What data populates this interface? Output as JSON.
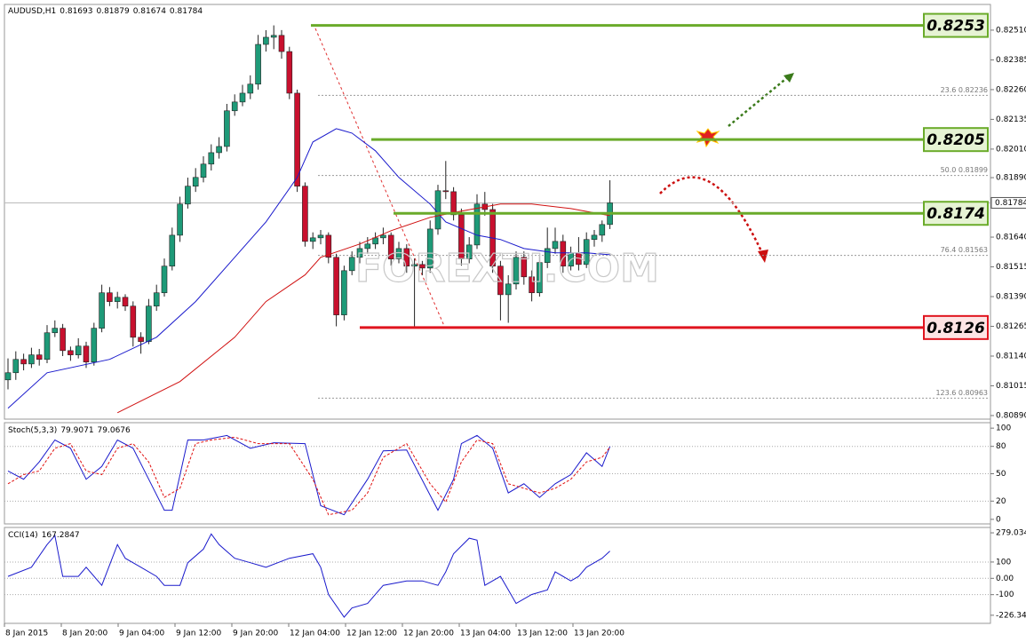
{
  "chart_data": [
    {
      "type": "candlestick",
      "title": "AUDUSD,H1",
      "watermark": "FOREXTI.COM",
      "up_color": "#1e9a78",
      "down_color": "#c8102e",
      "categories": [
        "8 Jan 2015",
        "8 Jan 20:00",
        "9 Jan 04:00",
        "9 Jan 12:00",
        "9 Jan 20:00",
        "12 Jan 04:00",
        "12 Jan 12:00",
        "12 Jan 20:00",
        "13 Jan 04:00",
        "13 Jan 12:00",
        "13 Jan 20:00"
      ],
      "ylim": [
        0.80875,
        0.82618
      ],
      "yticks": [
        {
          "value": 0.8251,
          "label": "0.82510"
        },
        0.82385,
        {
          "value": 0.8226,
          "label": "0.82260"
        },
        0.82135,
        {
          "value": 0.8201,
          "label": "0.82010"
        },
        {
          "value": 0.8189,
          "label": "0.81890"
        },
        {
          "value": 0.8164,
          "label": "0.81640"
        },
        0.81515,
        {
          "value": 0.8139,
          "label": "0.81390"
        },
        0.81265,
        {
          "value": 0.8114,
          "label": "0.81140"
        },
        0.81015,
        {
          "value": 0.8089,
          "label": "0.80890"
        }
      ],
      "candles": [
        [
          0.8104,
          0.8113,
          0.81,
          0.8107
        ],
        [
          0.8107,
          0.8116,
          0.8104,
          0.81126
        ],
        [
          0.81126,
          0.8115,
          0.8108,
          0.81107
        ],
        [
          0.81107,
          0.81175,
          0.8109,
          0.81145
        ],
        [
          0.81145,
          0.8117,
          0.811,
          0.81126
        ],
        [
          0.81126,
          0.8127,
          0.8111,
          0.81238
        ],
        [
          0.81238,
          0.8129,
          0.8122,
          0.81257
        ],
        [
          0.81257,
          0.81275,
          0.8114,
          0.81163
        ],
        [
          0.81163,
          0.8118,
          0.8112,
          0.81145
        ],
        [
          0.81145,
          0.81215,
          0.8113,
          0.81182
        ],
        [
          0.81182,
          0.812,
          0.8109,
          0.81115
        ],
        [
          0.81115,
          0.8128,
          0.811,
          0.81257
        ],
        [
          0.81257,
          0.8144,
          0.8124,
          0.81406
        ],
        [
          0.81406,
          0.8143,
          0.8135,
          0.81369
        ],
        [
          0.81369,
          0.8141,
          0.8134,
          0.81387
        ],
        [
          0.81387,
          0.814,
          0.8133,
          0.8135
        ],
        [
          0.8135,
          0.8137,
          0.8118,
          0.81219
        ],
        [
          0.81219,
          0.8124,
          0.8115,
          0.81201
        ],
        [
          0.81201,
          0.8138,
          0.8119,
          0.8135
        ],
        [
          0.8135,
          0.8144,
          0.8133,
          0.81406
        ],
        [
          0.81406,
          0.8155,
          0.8139,
          0.81518
        ],
        [
          0.81518,
          0.8168,
          0.815,
          0.81648
        ],
        [
          0.81648,
          0.8181,
          0.8162,
          0.81779
        ],
        [
          0.81779,
          0.8189,
          0.8176,
          0.81854
        ],
        [
          0.81854,
          0.8193,
          0.8183,
          0.81891
        ],
        [
          0.81891,
          0.8198,
          0.8187,
          0.81947
        ],
        [
          0.81947,
          0.8203,
          0.8192,
          0.81995
        ],
        [
          0.81995,
          0.8206,
          0.8197,
          0.82021
        ],
        [
          0.82021,
          0.822,
          0.82,
          0.82171
        ],
        [
          0.82171,
          0.8224,
          0.8215,
          0.82208
        ],
        [
          0.82208,
          0.8228,
          0.8219,
          0.82245
        ],
        [
          0.82245,
          0.8232,
          0.8222,
          0.82283
        ],
        [
          0.82283,
          0.8249,
          0.8226,
          0.8245
        ],
        [
          0.8245,
          0.8251,
          0.8242,
          0.8248
        ],
        [
          0.8248,
          0.8253,
          0.8243,
          0.82488
        ],
        [
          0.82488,
          0.8251,
          0.8239,
          0.8242
        ],
        [
          0.8242,
          0.8244,
          0.8222,
          0.82245
        ],
        [
          0.82245,
          0.8226,
          0.8183,
          0.81854
        ],
        [
          0.81854,
          0.8187,
          0.816,
          0.81622
        ],
        [
          0.81622,
          0.8166,
          0.8159,
          0.81637
        ],
        [
          0.81637,
          0.8167,
          0.8161,
          0.81648
        ],
        [
          0.81648,
          0.8166,
          0.8153,
          0.81555
        ],
        [
          0.81555,
          0.8157,
          0.81265,
          0.81313
        ],
        [
          0.81313,
          0.8152,
          0.8129,
          0.81499
        ],
        [
          0.81499,
          0.8158,
          0.8148,
          0.81555
        ],
        [
          0.81555,
          0.8162,
          0.8153,
          0.81592
        ],
        [
          0.81592,
          0.8164,
          0.8157,
          0.81611
        ],
        [
          0.81611,
          0.8166,
          0.8159,
          0.81637
        ],
        [
          0.81637,
          0.8168,
          0.8161,
          0.81648
        ],
        [
          0.81648,
          0.8166,
          0.8152,
          0.81548
        ],
        [
          0.81548,
          0.8162,
          0.8153,
          0.81592
        ],
        [
          0.81592,
          0.8161,
          0.8149,
          0.81518
        ],
        [
          0.81518,
          0.8155,
          0.81265,
          0.81525
        ],
        [
          0.81525,
          0.8154,
          0.8148,
          0.8151
        ],
        [
          0.8151,
          0.8171,
          0.8149,
          0.81674
        ],
        [
          0.81674,
          0.8186,
          0.8165,
          0.81835
        ],
        [
          0.81835,
          0.8196,
          0.818,
          0.81831
        ],
        [
          0.81831,
          0.8185,
          0.8171,
          0.81734
        ],
        [
          0.81734,
          0.8176,
          0.8152,
          0.81548
        ],
        [
          0.81548,
          0.8164,
          0.8153,
          0.81607
        ],
        [
          0.81607,
          0.8182,
          0.8159,
          0.81779
        ],
        [
          0.81779,
          0.8183,
          0.8173,
          0.81756
        ],
        [
          0.81756,
          0.8178,
          0.8149,
          0.81518
        ],
        [
          0.81518,
          0.8154,
          0.8129,
          0.81398
        ],
        [
          0.81398,
          0.8148,
          0.8128,
          0.81443
        ],
        [
          0.81443,
          0.8158,
          0.8142,
          0.81555
        ],
        [
          0.81555,
          0.8158,
          0.8144,
          0.81473
        ],
        [
          0.81473,
          0.815,
          0.8137,
          0.81406
        ],
        [
          0.81406,
          0.8156,
          0.8139,
          0.81533
        ],
        [
          0.81533,
          0.8168,
          0.8151,
          0.81592
        ],
        [
          0.81592,
          0.8168,
          0.8157,
          0.81622
        ],
        [
          0.81622,
          0.8165,
          0.8149,
          0.81518
        ],
        [
          0.81518,
          0.816,
          0.815,
          0.81574
        ],
        [
          0.81574,
          0.8164,
          0.815,
          0.81525
        ],
        [
          0.81525,
          0.8166,
          0.8151,
          0.8163
        ],
        [
          0.8163,
          0.8167,
          0.816,
          0.81648
        ],
        [
          0.81648,
          0.8171,
          0.8162,
          0.81693
        ],
        [
          0.81693,
          0.81879,
          0.81674,
          0.81784
        ]
      ],
      "series": [
        {
          "color": "#1a1acc",
          "x": [
            0,
            5,
            13,
            19,
            24,
            29,
            33,
            37,
            39,
            42,
            44,
            47,
            50,
            54,
            56,
            60,
            63,
            66,
            70,
            74,
            77
          ],
          "values": [
            0.80921,
            0.8107,
            0.81126,
            0.81219,
            0.81369,
            0.81555,
            0.81704,
            0.81891,
            0.8204,
            0.82096,
            0.82077,
            0.82003,
            0.81891,
            0.81779,
            0.81704,
            0.81648,
            0.8163,
            0.81592,
            0.81574,
            0.81574,
            0.81566
          ]
        },
        {
          "color": "#d01010",
          "x": [
            14,
            22,
            29,
            33,
            38,
            40,
            45,
            49,
            54,
            58,
            63,
            67,
            72,
            77
          ],
          "values": [
            0.80902,
            0.81033,
            0.81219,
            0.81369,
            0.81481,
            0.81555,
            0.81611,
            0.81667,
            0.81723,
            0.81749,
            0.81779,
            0.81779,
            0.8176,
            0.8173
          ]
        }
      ],
      "levels": [
        {
          "value": 0.8253,
          "color": "#6aab2a",
          "box_color": "#e6f3d4",
          "text_color": "#2d5016"
        },
        {
          "value": 0.8205,
          "color": "#6aab2a",
          "box_color": "#e6f3d4",
          "text_color": "#2d5016"
        },
        {
          "value": 0.8174,
          "color": "#6aab2a",
          "box_color": "#e6f3d4",
          "text_color": "#2d5016"
        },
        {
          "value": 0.8126,
          "color": "#e0141e",
          "box_color": "#fde4e4",
          "text_color": "#c80000"
        }
      ],
      "fib_levels": [
        {
          "value": 0.82236,
          "label": "23.6 0.82236"
        },
        {
          "value": 0.81899,
          "label": "50.0 0.81899"
        },
        {
          "value": 0.81563,
          "label": "76.4 0.81563"
        },
        {
          "value": 0.80963,
          "label": "123.6 0.80963"
        }
      ]
    },
    {
      "type": "line",
      "title": "Stoch(5,3,3)",
      "ylim": [
        -5,
        106
      ],
      "yticks": [
        100,
        80,
        50,
        20,
        0
      ],
      "grid": true,
      "series": [
        {
          "color": "#1a1acc",
          "style": "solid",
          "x": [
            0,
            2,
            4,
            6,
            8,
            10,
            12,
            14,
            16,
            18,
            20,
            21,
            23,
            25,
            28,
            31,
            34,
            38,
            40,
            43,
            46,
            48,
            51,
            55,
            57,
            58,
            60,
            62,
            64,
            66,
            68,
            70,
            72,
            74,
            76,
            77
          ],
          "values": [
            53,
            44,
            63,
            87,
            78,
            44,
            58,
            87,
            78,
            44,
            10,
            10,
            87,
            87,
            92,
            78,
            84,
            83,
            15,
            5,
            44,
            75,
            76,
            10,
            44,
            83,
            92,
            78,
            29,
            39,
            24,
            39,
            49,
            73,
            58,
            79.9071
          ]
        },
        {
          "color": "#e01010",
          "style": "dashed",
          "x": [
            0,
            2,
            4,
            6,
            8,
            10,
            12,
            14,
            16,
            18,
            20,
            22,
            24,
            26,
            29,
            32,
            36,
            39,
            41,
            44,
            46,
            48,
            51,
            54,
            56,
            58,
            60,
            62,
            64,
            66,
            68,
            70,
            72,
            74,
            76,
            77
          ],
          "values": [
            39,
            49,
            53,
            78,
            83,
            53,
            49,
            78,
            83,
            63,
            24,
            34,
            83,
            87,
            90,
            83,
            83,
            44,
            5,
            10,
            29,
            68,
            83,
            39,
            19,
            63,
            87,
            83,
            39,
            34,
            29,
            34,
            44,
            63,
            68,
            79.0676
          ]
        }
      ]
    },
    {
      "type": "line",
      "title": "CCI(14)",
      "ylim": [
        -276,
        312
      ],
      "yticks": [
        279.034,
        100,
        {
          "value": 0,
          "label": "0.00"
        },
        -100,
        -226.345
      ],
      "grid": true,
      "series": [
        {
          "color": "#1a1acc",
          "style": "solid",
          "x": [
            0,
            3,
            5,
            6,
            7,
            9,
            10,
            12,
            14,
            15,
            17,
            19,
            20,
            22,
            23,
            25,
            26,
            27,
            29,
            31,
            33,
            36,
            39,
            40,
            41,
            43,
            44,
            46,
            48,
            51,
            53,
            55,
            56,
            57,
            59,
            60,
            61,
            63,
            64,
            65,
            67,
            69,
            70,
            72,
            73,
            74,
            76,
            77
          ],
          "values": [
            12,
            68,
            207,
            262,
            12,
            12,
            68,
            -43,
            207,
            123,
            68,
            12,
            -43,
            -43,
            96,
            179,
            272,
            207,
            123,
            96,
            68,
            123,
            151,
            68,
            -99,
            -238,
            -182,
            -154,
            -43,
            -16,
            -16,
            -43,
            40,
            151,
            246,
            234,
            -43,
            12,
            -71,
            -154,
            -99,
            -71,
            40,
            -16,
            12,
            68,
            123,
            167.2847
          ]
        }
      ]
    }
  ]
}
